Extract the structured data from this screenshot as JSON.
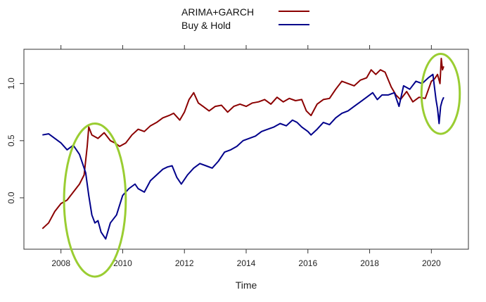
{
  "chart_data": {
    "type": "line",
    "title": "",
    "xlabel": "Time",
    "ylabel": "",
    "xlim": [
      2006.8,
      2021.2
    ],
    "ylim": [
      -0.45,
      1.3
    ],
    "grid": false,
    "legend_position": "top-center",
    "xticks": [
      2008,
      2010,
      2012,
      2014,
      2016,
      2018,
      2020
    ],
    "xtick_labels": [
      "2008",
      "2010",
      "2012",
      "2014",
      "2016",
      "2018",
      "2020"
    ],
    "yticks": [
      0.0,
      0.5,
      1.0
    ],
    "ytick_labels": [
      "0.0",
      "0.5",
      "1.0"
    ],
    "series": [
      {
        "name": "ARIMA+GARCH",
        "color": "#8b0000",
        "x": [
          2007.4,
          2007.6,
          2007.8,
          2008.0,
          2008.2,
          2008.4,
          2008.6,
          2008.75,
          2008.85,
          2008.9,
          2009.0,
          2009.2,
          2009.4,
          2009.6,
          2009.75,
          2009.9,
          2010.1,
          2010.3,
          2010.5,
          2010.7,
          2010.9,
          2011.1,
          2011.3,
          2011.5,
          2011.65,
          2011.85,
          2012.0,
          2012.15,
          2012.3,
          2012.45,
          2012.6,
          2012.8,
          2013.0,
          2013.2,
          2013.4,
          2013.6,
          2013.8,
          2014.0,
          2014.2,
          2014.4,
          2014.6,
          2014.8,
          2015.0,
          2015.2,
          2015.4,
          2015.6,
          2015.8,
          2015.95,
          2016.1,
          2016.3,
          2016.5,
          2016.7,
          2016.9,
          2017.1,
          2017.3,
          2017.5,
          2017.7,
          2017.9,
          2018.05,
          2018.2,
          2018.35,
          2018.5,
          2018.7,
          2018.85,
          2019.0,
          2019.2,
          2019.4,
          2019.6,
          2019.8,
          2020.0,
          2020.1,
          2020.2,
          2020.28,
          2020.32,
          2020.36,
          2020.4
        ],
        "values": [
          -0.27,
          -0.22,
          -0.12,
          -0.05,
          -0.02,
          0.05,
          0.12,
          0.2,
          0.45,
          0.62,
          0.55,
          0.52,
          0.57,
          0.5,
          0.48,
          0.45,
          0.48,
          0.55,
          0.6,
          0.58,
          0.63,
          0.66,
          0.7,
          0.72,
          0.74,
          0.68,
          0.75,
          0.86,
          0.92,
          0.83,
          0.8,
          0.76,
          0.8,
          0.81,
          0.75,
          0.8,
          0.82,
          0.8,
          0.83,
          0.84,
          0.86,
          0.82,
          0.88,
          0.84,
          0.87,
          0.85,
          0.86,
          0.76,
          0.72,
          0.82,
          0.86,
          0.87,
          0.95,
          1.02,
          1.0,
          0.98,
          1.03,
          1.05,
          1.12,
          1.08,
          1.12,
          1.1,
          0.97,
          0.9,
          0.86,
          0.93,
          0.84,
          0.88,
          0.87,
          1.02,
          1.04,
          1.08,
          1.0,
          1.22,
          1.12,
          1.15
        ]
      },
      {
        "name": "Buy & Hold",
        "color": "#00008b",
        "x": [
          2007.4,
          2007.6,
          2007.8,
          2008.0,
          2008.2,
          2008.4,
          2008.6,
          2008.7,
          2008.8,
          2008.9,
          2009.0,
          2009.1,
          2009.2,
          2009.3,
          2009.45,
          2009.6,
          2009.8,
          2010.0,
          2010.2,
          2010.4,
          2010.5,
          2010.7,
          2010.9,
          2011.1,
          2011.3,
          2011.45,
          2011.6,
          2011.75,
          2011.9,
          2012.1,
          2012.3,
          2012.5,
          2012.7,
          2012.9,
          2013.1,
          2013.3,
          2013.5,
          2013.7,
          2013.9,
          2014.1,
          2014.3,
          2014.5,
          2014.7,
          2014.9,
          2015.1,
          2015.3,
          2015.5,
          2015.65,
          2015.8,
          2016.0,
          2016.1,
          2016.3,
          2016.5,
          2016.7,
          2016.9,
          2017.1,
          2017.3,
          2017.5,
          2017.7,
          2017.9,
          2018.1,
          2018.25,
          2018.4,
          2018.6,
          2018.8,
          2018.95,
          2019.1,
          2019.3,
          2019.5,
          2019.7,
          2019.9,
          2020.05,
          2020.15,
          2020.2,
          2020.25,
          2020.3,
          2020.35,
          2020.4
        ],
        "values": [
          0.55,
          0.56,
          0.52,
          0.48,
          0.42,
          0.46,
          0.38,
          0.3,
          0.22,
          0.02,
          -0.15,
          -0.22,
          -0.2,
          -0.3,
          -0.36,
          -0.22,
          -0.15,
          0.02,
          0.08,
          0.12,
          0.08,
          0.05,
          0.15,
          0.2,
          0.25,
          0.27,
          0.28,
          0.18,
          0.12,
          0.2,
          0.26,
          0.3,
          0.28,
          0.26,
          0.32,
          0.4,
          0.42,
          0.45,
          0.5,
          0.52,
          0.54,
          0.58,
          0.6,
          0.62,
          0.65,
          0.63,
          0.68,
          0.66,
          0.62,
          0.58,
          0.55,
          0.6,
          0.66,
          0.64,
          0.7,
          0.74,
          0.76,
          0.8,
          0.84,
          0.88,
          0.92,
          0.86,
          0.9,
          0.9,
          0.92,
          0.8,
          0.98,
          0.95,
          1.02,
          1.0,
          1.05,
          1.08,
          0.86,
          0.78,
          0.65,
          0.8,
          0.85,
          0.88
        ]
      }
    ],
    "annotations": [
      {
        "shape": "ellipse",
        "color": "#9acd32",
        "center_x": 2009.1,
        "center_y": -0.02,
        "rx_years": 1.0,
        "ry_data": 0.67
      },
      {
        "shape": "ellipse",
        "color": "#9acd32",
        "center_x": 2020.3,
        "center_y": 0.91,
        "rx_years": 0.62,
        "ry_data": 0.35
      }
    ]
  }
}
